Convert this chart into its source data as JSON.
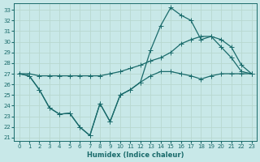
{
  "xlabel": "Humidex (Indice chaleur)",
  "background_color": "#c8e8e8",
  "grid_color": "#d0e8e0",
  "line_color": "#1a6b6b",
  "xlim": [
    -0.5,
    23.5
  ],
  "ylim": [
    20.7,
    33.6
  ],
  "xticks": [
    0,
    1,
    2,
    3,
    4,
    5,
    6,
    7,
    8,
    9,
    10,
    11,
    12,
    13,
    14,
    15,
    16,
    17,
    18,
    19,
    20,
    21,
    22,
    23
  ],
  "yticks": [
    21,
    22,
    23,
    24,
    25,
    26,
    27,
    28,
    29,
    30,
    31,
    32,
    33
  ],
  "line_peak_x": [
    0,
    1,
    2,
    3,
    4,
    5,
    6,
    7,
    8,
    9,
    10,
    11,
    12,
    13,
    14,
    15,
    16,
    17,
    18,
    19,
    20,
    21,
    22,
    23
  ],
  "line_peak_y": [
    27.0,
    26.8,
    25.5,
    23.8,
    23.2,
    23.3,
    22.0,
    21.2,
    24.2,
    22.5,
    25.0,
    25.5,
    26.2,
    29.2,
    31.5,
    33.2,
    32.5,
    32.0,
    30.2,
    30.5,
    29.5,
    28.5,
    27.2,
    27.0
  ],
  "line_grad_x": [
    0,
    1,
    2,
    3,
    4,
    5,
    6,
    7,
    8,
    9,
    10,
    11,
    12,
    13,
    14,
    15,
    16,
    17,
    18,
    19,
    20,
    21,
    22,
    23
  ],
  "line_grad_y": [
    27.0,
    27.0,
    26.8,
    26.8,
    26.8,
    26.8,
    26.8,
    26.8,
    26.8,
    27.0,
    27.2,
    27.5,
    27.8,
    28.2,
    28.5,
    29.0,
    29.8,
    30.2,
    30.5,
    30.5,
    30.2,
    29.5,
    27.8,
    27.0
  ],
  "line_low_x": [
    0,
    1,
    2,
    3,
    4,
    5,
    6,
    7,
    8,
    9,
    10,
    11,
    12,
    13,
    14,
    15,
    16,
    17,
    18,
    19,
    20,
    21,
    22,
    23
  ],
  "line_low_y": [
    27.0,
    26.8,
    25.5,
    23.8,
    23.2,
    23.3,
    22.0,
    21.2,
    24.2,
    22.5,
    25.0,
    25.5,
    26.2,
    26.8,
    27.2,
    27.2,
    27.0,
    26.8,
    26.5,
    26.8,
    27.0,
    27.0,
    27.0,
    27.0
  ]
}
